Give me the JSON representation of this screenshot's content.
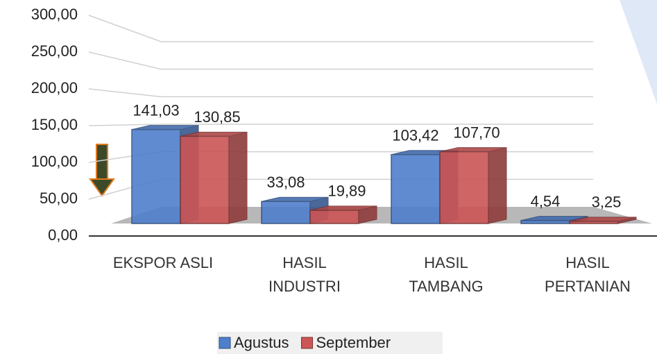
{
  "chart_data": {
    "type": "bar3d",
    "categories": [
      "EKSPOR ASLI",
      "HASIL INDUSTRI",
      "HASIL TAMBANG",
      "HASIL PERTANIAN"
    ],
    "series": [
      {
        "name": "Agustus",
        "color": "#4f7fcc",
        "values": [
          141.03,
          33.08,
          103.42,
          4.54
        ],
        "value_labels": [
          "141,03",
          "33,08",
          "103,42",
          "4,54"
        ]
      },
      {
        "name": "September",
        "color": "#cc5555",
        "values": [
          130.85,
          19.89,
          107.7,
          3.25
        ],
        "value_labels": [
          "130,85",
          "19,89",
          "107,70",
          "3,25"
        ]
      }
    ],
    "ylim": [
      0,
      300
    ],
    "yticks": [
      {
        "value": 0,
        "label": "0,00"
      },
      {
        "value": 50,
        "label": "50,00"
      },
      {
        "value": 100,
        "label": "100,00"
      },
      {
        "value": 150,
        "label": "150,00"
      },
      {
        "value": 200,
        "label": "200,00"
      },
      {
        "value": 250,
        "label": "250,00"
      },
      {
        "value": 300,
        "label": "300,00"
      }
    ],
    "grid": true,
    "legend": "bottom"
  }
}
